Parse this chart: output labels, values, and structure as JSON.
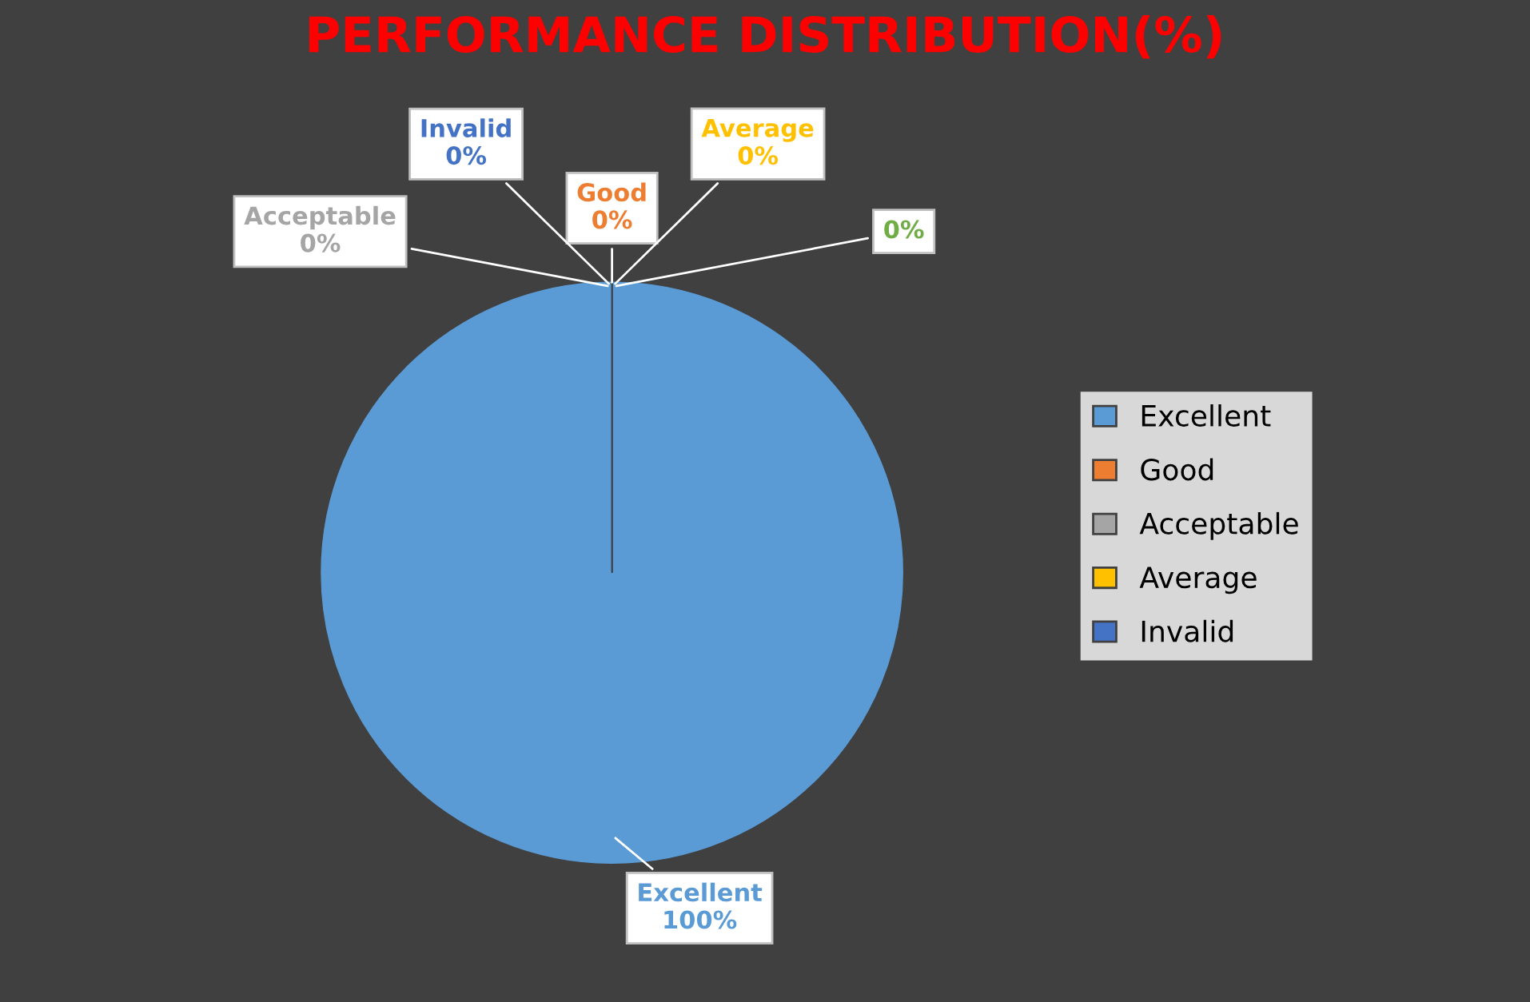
{
  "chart_data": {
    "type": "pie",
    "title": "PERFORMANCE DISTRIBUTION(%)",
    "categories": [
      "Excellent",
      "Good",
      "Acceptable",
      "Average",
      "Invalid",
      null
    ],
    "values": [
      100,
      0,
      0,
      0,
      0,
      0
    ],
    "value_labels": [
      "100%",
      "0%",
      "0%",
      "0%",
      "0%",
      "0%"
    ],
    "colors": [
      "#5b9bd5",
      "#ed7d31",
      "#a5a5a5",
      "#ffc000",
      "#4472c4",
      "#70ad47"
    ],
    "legend": "right"
  }
}
